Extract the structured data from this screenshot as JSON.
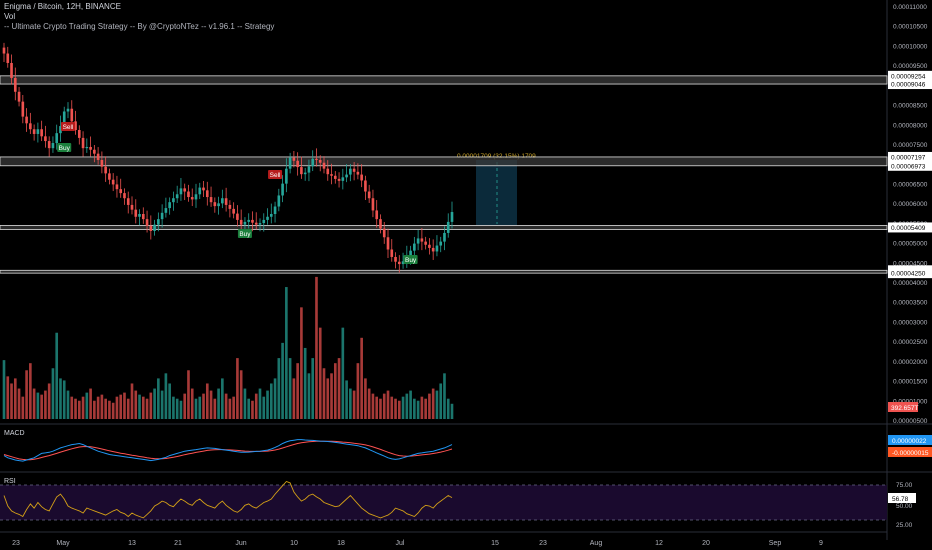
{
  "header": {
    "symbol_line": "Enigma / Bitcoin, 12H, BINANCE",
    "vol_label": "Vol",
    "strategy_line": "-- Ultimate Crypto Trading Strategy -- By @CryptoNTez -- v1.96.1 -- Strategy"
  },
  "panes": {
    "macd_label": "MACD",
    "rsi_label": "RSI"
  },
  "price_axis": {
    "ticks": [
      "0.00011000",
      "0.00010500",
      "0.00010000",
      "0.00009500",
      "0.00009000",
      "0.00008500",
      "0.00008000",
      "0.00007500",
      "0.00007000",
      "0.00006500",
      "0.00006000",
      "0.00005500",
      "0.00005000",
      "0.00004500",
      "0.00004000",
      "0.00003500",
      "0.00003000",
      "0.00002500",
      "0.00002000",
      "0.00001500",
      "0.00001000",
      "0.00000500"
    ],
    "level_labels": [
      "0.00009254",
      "0.00009046",
      "0.00007197",
      "0.00006973",
      "0.00005409",
      "0.00004322",
      "0.00004250"
    ],
    "volume_badge": "392.657T"
  },
  "macd_axis": {
    "badge_blue": "0.00000022",
    "badge_red": "-0.00000015"
  },
  "rsi_axis": {
    "ticks": [
      "75.00",
      "25.00"
    ],
    "mid": "50.00",
    "badge": "56.78"
  },
  "time_axis": [
    "23",
    "May",
    "13",
    "21",
    "Jun",
    "10",
    "18",
    "Jul",
    "15",
    "23",
    "Aug",
    "12",
    "20",
    "Sep",
    "9"
  ],
  "projection_label": "0.00001709 (32.15%) 1709",
  "trade_markers": [
    {
      "label": "Sell",
      "type": "sell"
    },
    {
      "label": "Buy",
      "type": "buy"
    },
    {
      "label": "Sell",
      "type": "sell"
    },
    {
      "label": "Buy",
      "type": "buy"
    },
    {
      "label": "Buy",
      "type": "buy"
    }
  ],
  "colors": {
    "up": "#26a69a",
    "down": "#ef5350",
    "macd": "#2196f3",
    "signal": "#ff5252",
    "rsi": "#d4a017",
    "rsi_band": "#1a0a2e",
    "projection": "#0b2a3a",
    "label_bg": "#ffffff"
  },
  "chart_data": {
    "type": "candlestick",
    "candles_close": [
      9.82e-05,
      9.58e-05,
      9.2e-05,
      8.85e-05,
      8.6e-05,
      8.22e-05,
      8.05e-05,
      7.9e-05,
      7.78e-05,
      7.9e-05,
      7.72e-05,
      7.6e-05,
      7.42e-05,
      7.55e-05,
      7.8e-05,
      7.98e-05,
      8.35e-05,
      8.42e-05,
      8.1e-05,
      7.88e-05,
      7.68e-05,
      7.42e-05,
      7.45e-05,
      7.38e-05,
      7.28e-05,
      7.12e-05,
      6.95e-05,
      6.78e-05,
      6.62e-05,
      6.5e-05,
      6.38e-05,
      6.28e-05,
      6.15e-05,
      5.98e-05,
      5.86e-05,
      5.68e-05,
      5.75e-05,
      5.62e-05,
      5.45e-05,
      5.32e-05,
      5.48e-05,
      5.62e-05,
      5.78e-05,
      5.9e-05,
      6.05e-05,
      6.15e-05,
      6.25e-05,
      6.4e-05,
      6.32e-05,
      6.18e-05,
      6.12e-05,
      6.25e-05,
      6.42e-05,
      6.35e-05,
      6.18e-05,
      6.05e-05,
      5.95e-05,
      6.02e-05,
      6.15e-05,
      5.98e-05,
      5.88e-05,
      5.76e-05,
      5.6e-05,
      5.48e-05,
      5.55e-05,
      5.6e-05,
      5.53e-05,
      5.48e-05,
      5.52e-05,
      5.6e-05,
      5.68e-05,
      5.75e-05,
      5.94e-05,
      6.22e-05,
      6.52e-05,
      6.9e-05,
      7.18e-05,
      7.1e-05,
      6.94e-05,
      6.76e-05,
      6.8e-05,
      6.96e-05,
      7.15e-05,
      7.12e-05,
      7.05e-05,
      6.9e-05,
      6.76e-05,
      6.72e-05,
      6.64e-05,
      6.59e-05,
      6.68e-05,
      6.75e-05,
      6.9e-05,
      6.82e-05,
      6.75e-05,
      6.6e-05,
      6.32e-05,
      6.15e-05,
      5.84e-05,
      5.62e-05,
      5.38e-05,
      5.16e-05,
      4.85e-05,
      4.66e-05,
      4.54e-05,
      4.48e-05,
      4.55e-05,
      4.68e-05,
      4.82e-05,
      5e-05,
      5.13e-05,
      5.05e-05,
      4.97e-05,
      4.89e-05,
      4.8e-05,
      4.95e-05,
      5.05e-05,
      5.27e-05,
      5.55e-05,
      5.8e-05
    ],
    "volume": [
      58,
      42,
      35,
      40,
      30,
      22,
      48,
      55,
      30,
      26,
      24,
      28,
      35,
      50,
      85,
      40,
      38,
      28,
      22,
      20,
      18,
      22,
      26,
      30,
      18,
      22,
      24,
      20,
      18,
      16,
      22,
      24,
      26,
      20,
      35,
      28,
      24,
      22,
      20,
      26,
      30,
      40,
      28,
      45,
      35,
      22,
      20,
      18,
      25,
      48,
      30,
      20,
      22,
      25,
      35,
      28,
      20,
      30,
      40,
      25,
      20,
      22,
      60,
      48,
      30,
      20,
      18,
      25,
      30,
      22,
      28,
      35,
      40,
      60,
      75,
      130,
      60,
      40,
      55,
      110,
      70,
      45,
      60,
      140,
      90,
      50,
      40,
      45,
      55,
      60,
      90,
      38,
      30,
      28,
      55,
      80,
      40,
      30,
      25,
      22,
      20,
      25,
      28,
      22,
      20,
      18,
      22,
      25,
      28,
      20,
      18,
      22,
      20,
      25,
      30,
      28,
      35,
      45,
      20,
      15
    ],
    "macd": [
      -0.6,
      -0.8,
      -0.9,
      -1.0,
      -1.05,
      -1.1,
      -1.0,
      -0.9,
      -0.8,
      -0.6,
      -0.4,
      -0.35,
      -0.3,
      -0.2,
      -0.05,
      0.1,
      0.2,
      0.3,
      0.4,
      0.45,
      0.5,
      0.4,
      0.25,
      0.1,
      -0.05,
      -0.2,
      -0.3,
      -0.4,
      -0.5,
      -0.55,
      -0.6,
      -0.65,
      -0.7,
      -0.75,
      -0.8,
      -0.85,
      -0.9,
      -0.95,
      -1.0,
      -1.05,
      -1.0,
      -0.95,
      -0.85,
      -0.75,
      -0.6,
      -0.5,
      -0.4,
      -0.3,
      -0.2,
      -0.15,
      -0.1,
      -0.05,
      0.0,
      0.05,
      0.1,
      0.08,
      0.05,
      0.0,
      -0.05,
      -0.1,
      -0.15,
      -0.2,
      -0.25,
      -0.3,
      -0.3,
      -0.28,
      -0.25,
      -0.22,
      -0.2,
      -0.15,
      -0.1,
      0.0,
      0.15,
      0.3,
      0.5,
      0.65,
      0.75,
      0.8,
      0.85,
      0.85,
      0.82,
      0.8,
      0.78,
      0.75,
      0.72,
      0.7,
      0.68,
      0.65,
      0.6,
      0.55,
      0.5,
      0.45,
      0.4,
      0.35,
      0.3,
      0.2,
      0.1,
      -0.05,
      -0.2,
      -0.35,
      -0.5,
      -0.65,
      -0.8,
      -0.9,
      -0.95,
      -0.9,
      -0.8,
      -0.7,
      -0.6,
      -0.5,
      -0.4,
      -0.35,
      -0.3,
      -0.25,
      -0.2,
      -0.1,
      0.0,
      0.1,
      0.25,
      0.4
    ],
    "signal": [
      -0.5,
      -0.6,
      -0.7,
      -0.8,
      -0.9,
      -0.95,
      -0.98,
      -0.97,
      -0.93,
      -0.86,
      -0.77,
      -0.68,
      -0.6,
      -0.5,
      -0.4,
      -0.28,
      -0.18,
      -0.08,
      0.02,
      0.1,
      0.18,
      0.22,
      0.23,
      0.2,
      0.15,
      0.08,
      0.0,
      -0.08,
      -0.16,
      -0.24,
      -0.31,
      -0.38,
      -0.44,
      -0.5,
      -0.56,
      -0.62,
      -0.68,
      -0.73,
      -0.79,
      -0.84,
      -0.87,
      -0.89,
      -0.88,
      -0.86,
      -0.81,
      -0.75,
      -0.68,
      -0.6,
      -0.52,
      -0.45,
      -0.38,
      -0.31,
      -0.25,
      -0.19,
      -0.13,
      -0.09,
      -0.06,
      -0.05,
      -0.05,
      -0.06,
      -0.08,
      -0.1,
      -0.13,
      -0.16,
      -0.19,
      -0.21,
      -0.22,
      -0.22,
      -0.22,
      -0.21,
      -0.19,
      -0.15,
      -0.09,
      -0.01,
      0.09,
      0.2,
      0.31,
      0.41,
      0.5,
      0.57,
      0.62,
      0.66,
      0.68,
      0.7,
      0.71,
      0.71,
      0.71,
      0.7,
      0.69,
      0.66,
      0.63,
      0.6,
      0.56,
      0.52,
      0.48,
      0.43,
      0.37,
      0.29,
      0.19,
      0.08,
      -0.04,
      -0.16,
      -0.29,
      -0.41,
      -0.52,
      -0.6,
      -0.64,
      -0.66,
      -0.65,
      -0.62,
      -0.58,
      -0.54,
      -0.5,
      -0.46,
      -0.41,
      -0.35,
      -0.28,
      -0.2,
      -0.11,
      0.0
    ],
    "rsi": [
      60,
      45,
      38,
      35,
      33,
      30,
      40,
      48,
      42,
      50,
      44,
      40,
      38,
      48,
      58,
      62,
      55,
      45,
      42,
      40,
      38,
      35,
      42,
      40,
      38,
      36,
      34,
      32,
      35,
      38,
      40,
      36,
      34,
      30,
      35,
      32,
      30,
      28,
      33,
      38,
      45,
      48,
      52,
      50,
      46,
      44,
      50,
      55,
      52,
      48,
      46,
      52,
      55,
      50,
      46,
      44,
      42,
      48,
      52,
      46,
      42,
      38,
      36,
      40,
      46,
      48,
      44,
      42,
      46,
      50,
      52,
      55,
      62,
      68,
      74,
      80,
      78,
      65,
      58,
      52,
      55,
      60,
      62,
      58,
      55,
      50,
      48,
      46,
      44,
      45,
      50,
      55,
      60,
      54,
      48,
      42,
      38,
      34,
      32,
      30,
      28,
      30,
      32,
      36,
      42,
      40,
      38,
      34,
      32,
      30,
      35,
      42,
      46,
      45,
      42,
      48,
      52,
      56,
      60,
      57
    ],
    "levels": [
      9.254e-05,
      9.046e-05,
      7.197e-05,
      6.973e-05,
      5.409e-05,
      4.322e-05,
      4.25e-05
    ]
  }
}
